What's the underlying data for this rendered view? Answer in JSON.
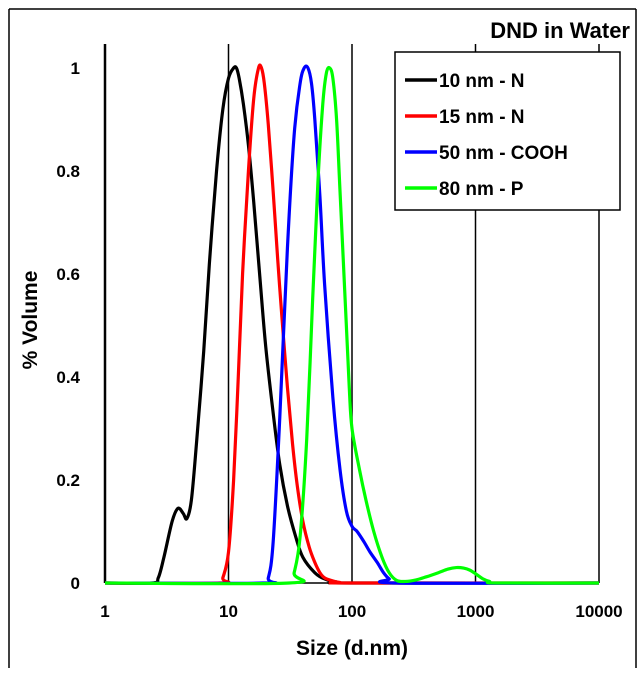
{
  "chart_data": {
    "type": "line",
    "title": "DND in Water",
    "xlabel": "Size (d.nm)",
    "ylabel": "% Volume",
    "xscale": "log",
    "xlim": [
      1,
      10000
    ],
    "ylim": [
      0,
      1
    ],
    "xticks": [
      "1",
      "10",
      "100",
      "1000",
      "10000"
    ],
    "yticks": [
      "0",
      "0.2",
      "0.4",
      "0.6",
      "0.8",
      "1"
    ],
    "grid": "vertical lines at decades",
    "legend_position": "top-right",
    "series": [
      {
        "name": "10 nm - N",
        "color": "#000000",
        "x": [
          1,
          2.4,
          2.7,
          3.0,
          3.5,
          3.9,
          4.3,
          4.6,
          5.0,
          5.5,
          6.3,
          7.0,
          8.0,
          9.0,
          10.0,
          11.0,
          11.6,
          12.2,
          13.2,
          14.5,
          16.0,
          18.0,
          20.0,
          23.0,
          26.0,
          30.0,
          35.0,
          40.0,
          50.0,
          60.0,
          75.0,
          100.0,
          10000
        ],
        "y": [
          0,
          0,
          0.01,
          0.05,
          0.12,
          0.145,
          0.135,
          0.125,
          0.16,
          0.27,
          0.45,
          0.62,
          0.8,
          0.92,
          0.98,
          1.0,
          1.0,
          0.98,
          0.93,
          0.85,
          0.74,
          0.59,
          0.46,
          0.33,
          0.23,
          0.15,
          0.09,
          0.05,
          0.02,
          0.008,
          0.002,
          0,
          0
        ]
      },
      {
        "name": "15 nm - N",
        "color": "#ff0000",
        "x": [
          1,
          8.5,
          9.0,
          10.0,
          11.0,
          12.0,
          13.0,
          14.5,
          16.0,
          17.5,
          18.5,
          19.5,
          21.0,
          23.0,
          25.0,
          27.0,
          30.0,
          33.0,
          36.0,
          40.0,
          45.0,
          50.0,
          55.0,
          60.0,
          70.0,
          80.0,
          100.0,
          10000
        ],
        "y": [
          0,
          0,
          0.01,
          0.06,
          0.2,
          0.4,
          0.6,
          0.8,
          0.94,
          1.0,
          1.0,
          0.97,
          0.89,
          0.76,
          0.63,
          0.52,
          0.38,
          0.27,
          0.19,
          0.12,
          0.07,
          0.04,
          0.02,
          0.01,
          0.004,
          0.001,
          0,
          0
        ]
      },
      {
        "name": "50 nm - COOH",
        "color": "#0000ff",
        "x": [
          1,
          19.0,
          21.0,
          23.0,
          26.0,
          30.0,
          34.0,
          38.0,
          41.0,
          44.0,
          47.0,
          50.0,
          55.0,
          60.0,
          70.0,
          80.0,
          90.0,
          100.0,
          110.0,
          125.0,
          140.0,
          160.0,
          180.0,
          200.0,
          230.0,
          10000
        ],
        "y": [
          0,
          0,
          0.01,
          0.08,
          0.32,
          0.65,
          0.87,
          0.97,
          1.0,
          1.0,
          0.97,
          0.9,
          0.75,
          0.58,
          0.36,
          0.22,
          0.14,
          0.11,
          0.1,
          0.08,
          0.06,
          0.04,
          0.02,
          0.008,
          0,
          0
        ]
      },
      {
        "name": "80 nm - P",
        "color": "#00ff00",
        "x": [
          1,
          31.0,
          34.0,
          38.0,
          43.0,
          48.0,
          53.0,
          58.0,
          62.0,
          66.0,
          70.0,
          75.0,
          80.0,
          88.0,
          95.0,
          100.0,
          115.0,
          130.0,
          150.0,
          175.0,
          200.0,
          230.0,
          270.0,
          330.0,
          400.0,
          500.0,
          600.0,
          700.0,
          800.0,
          900.0,
          1000.0,
          1150.0,
          1300.0,
          1500.0,
          10000
        ],
        "y": [
          0,
          0,
          0.02,
          0.09,
          0.28,
          0.55,
          0.78,
          0.93,
          0.99,
          1.0,
          0.98,
          0.9,
          0.76,
          0.55,
          0.38,
          0.3,
          0.22,
          0.16,
          0.1,
          0.05,
          0.02,
          0.005,
          0.003,
          0.006,
          0.012,
          0.02,
          0.027,
          0.03,
          0.029,
          0.025,
          0.018,
          0.008,
          0.003,
          0,
          0
        ]
      }
    ]
  }
}
